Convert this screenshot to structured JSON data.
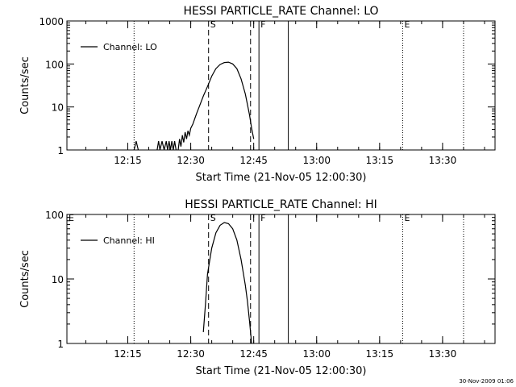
{
  "footer_timestamp": "30-Nov-2009 01:06",
  "chart_data": [
    {
      "type": "line",
      "title": "HESSI PARTICLE_RATE Channel: LO",
      "xlabel": "Start Time (21-Nov-05 12:00:30)",
      "ylabel": "Counts/sec",
      "yscale": "log",
      "xlim": [
        "12:00:30",
        "13:42:30"
      ],
      "ylim": [
        1,
        1000
      ],
      "x_ticks": [
        "12:15",
        "12:30",
        "12:45",
        "13:00",
        "13:15",
        "13:30"
      ],
      "y_ticks": [
        {
          "value": 1,
          "label": "1"
        },
        {
          "value": 10,
          "label": "10"
        },
        {
          "value": 100,
          "label": "100"
        },
        {
          "value": 1000,
          "label": "1000"
        }
      ],
      "legend": {
        "position": "top-left",
        "entries": [
          "Channel: LO"
        ]
      },
      "markers": [
        {
          "label": "",
          "time": "12:00:30",
          "style": "solid"
        },
        {
          "label": "",
          "time": "12:16:30",
          "style": "dotted"
        },
        {
          "label": "S",
          "time": "12:34:15",
          "style": "dashed"
        },
        {
          "label": "",
          "time": "12:44:15",
          "style": "dashed"
        },
        {
          "label": "F",
          "time": "12:46:15",
          "style": "solid"
        },
        {
          "label": "",
          "time": "12:53:15",
          "style": "solid"
        },
        {
          "label": "E",
          "time": "13:20:30",
          "style": "dotted"
        },
        {
          "label": "",
          "time": "13:35:00",
          "style": "dotted"
        }
      ],
      "series": [
        {
          "name": "Channel: LO",
          "segments": [
            [
              [
                "12:16:30",
                1
              ],
              [
                "12:17:00",
                1.6
              ],
              [
                "12:17:30",
                1
              ]
            ],
            [
              [
                "12:22:00",
                1
              ],
              [
                "12:22:20",
                1.6
              ],
              [
                "12:22:40",
                1
              ],
              [
                "12:23:10",
                1.6
              ],
              [
                "12:23:40",
                1
              ],
              [
                "12:24:10",
                1.6
              ],
              [
                "12:24:30",
                1
              ],
              [
                "12:24:50",
                1.6
              ],
              [
                "12:25:10",
                1
              ],
              [
                "12:25:30",
                1.6
              ],
              [
                "12:25:50",
                1
              ],
              [
                "12:26:10",
                1.6
              ],
              [
                "12:26:30",
                1
              ]
            ],
            [
              [
                "12:27:00",
                1
              ],
              [
                "12:27:20",
                1.8
              ],
              [
                "12:27:40",
                1.2
              ],
              [
                "12:28:00",
                2.2
              ],
              [
                "12:28:20",
                1.5
              ],
              [
                "12:28:40",
                2.6
              ],
              [
                "12:29:00",
                1.8
              ],
              [
                "12:29:20",
                2.8
              ],
              [
                "12:29:40",
                2.2
              ],
              [
                "12:30:00",
                3.2
              ],
              [
                "12:30:30",
                4
              ],
              [
                "12:31:00",
                5.5
              ],
              [
                "12:31:30",
                7.5
              ],
              [
                "12:32:00",
                10
              ],
              [
                "12:33:00",
                18
              ],
              [
                "12:34:00",
                30
              ],
              [
                "12:35:00",
                52
              ],
              [
                "12:36:00",
                78
              ],
              [
                "12:37:00",
                97
              ],
              [
                "12:38:00",
                108
              ],
              [
                "12:39:00",
                110
              ],
              [
                "12:40:00",
                100
              ],
              [
                "12:41:00",
                78
              ],
              [
                "12:42:00",
                45
              ],
              [
                "12:43:00",
                20
              ],
              [
                "12:44:00",
                6.5
              ],
              [
                "12:44:30",
                3.2
              ],
              [
                "12:45:00",
                1.8
              ]
            ]
          ]
        }
      ]
    },
    {
      "type": "line",
      "title": "HESSI PARTICLE_RATE Channel: HI",
      "xlabel": "Start Time (21-Nov-05 12:00:30)",
      "ylabel": "Counts/sec",
      "yscale": "log",
      "xlim": [
        "12:00:30",
        "13:42:30"
      ],
      "ylim": [
        1,
        100
      ],
      "x_ticks": [
        "12:15",
        "12:30",
        "12:45",
        "13:00",
        "13:15",
        "13:30"
      ],
      "y_ticks": [
        {
          "value": 1,
          "label": "1"
        },
        {
          "value": 10,
          "label": "10"
        },
        {
          "value": 100,
          "label": "100"
        }
      ],
      "legend": {
        "position": "top-left",
        "entries": [
          "Channel: HI"
        ]
      },
      "markers": [
        {
          "label": "E",
          "time": "12:00:30",
          "style": "solid"
        },
        {
          "label": "",
          "time": "12:16:30",
          "style": "dotted"
        },
        {
          "label": "S",
          "time": "12:34:15",
          "style": "dashed"
        },
        {
          "label": "",
          "time": "12:44:15",
          "style": "dashed"
        },
        {
          "label": "F",
          "time": "12:46:15",
          "style": "solid"
        },
        {
          "label": "",
          "time": "12:53:15",
          "style": "solid"
        },
        {
          "label": "E",
          "time": "13:20:30",
          "style": "dotted"
        },
        {
          "label": "",
          "time": "13:35:00",
          "style": "dotted"
        }
      ],
      "series": [
        {
          "name": "Channel: HI",
          "segments": [
            [
              [
                "12:33:00",
                1.5
              ],
              [
                "12:33:30",
                4
              ],
              [
                "12:34:00",
                12
              ],
              [
                "12:35:00",
                30
              ],
              [
                "12:36:00",
                52
              ],
              [
                "12:37:00",
                68
              ],
              [
                "12:38:00",
                75
              ],
              [
                "12:39:00",
                72
              ],
              [
                "12:40:00",
                60
              ],
              [
                "12:41:00",
                40
              ],
              [
                "12:42:00",
                20
              ],
              [
                "12:43:00",
                8
              ],
              [
                "12:43:30",
                4.5
              ],
              [
                "12:44:00",
                2.2
              ],
              [
                "12:44:30",
                1
              ]
            ]
          ]
        }
      ]
    }
  ]
}
